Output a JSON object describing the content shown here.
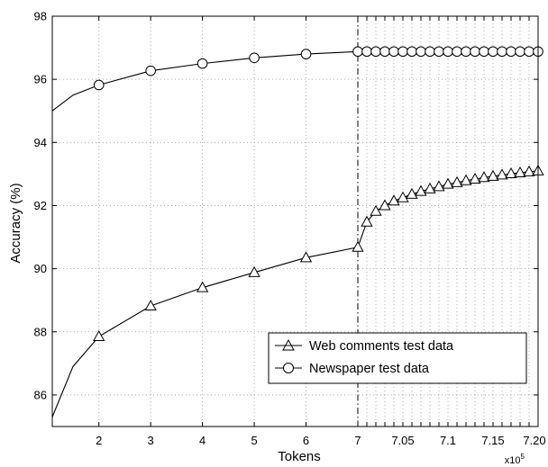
{
  "chart_data": {
    "type": "line",
    "title": "",
    "xlabel": "Tokens",
    "ylabel": "Accuracy (%)",
    "x_multiplier": "x10",
    "x_multiplier_exp": "5",
    "ylim": [
      85,
      98
    ],
    "yticks": [
      "86",
      "88",
      "90",
      "92",
      "94",
      "96",
      "98"
    ],
    "grid": "dotted",
    "legend_position": "bottom-right",
    "x_axis": {
      "scale": "piecewise-linear",
      "left_segment": {
        "range": [
          1.1,
          7
        ],
        "tick_labels": [
          "2",
          "3",
          "4",
          "5",
          "6",
          "7"
        ]
      },
      "right_segment": {
        "range": [
          7,
          7.2
        ],
        "tick_labels": [
          "7.05",
          "7.1",
          "7.15",
          "7.20"
        ]
      },
      "break_at": 7,
      "break_line": "dash-dot"
    },
    "series": [
      {
        "name": "Web comments test data",
        "marker": "triangle",
        "color": "#000000",
        "curve": [
          [
            1.1,
            85.3
          ],
          [
            1.5,
            86.9
          ]
        ],
        "points": [
          [
            2,
            87.85
          ],
          [
            3,
            88.82
          ],
          [
            4,
            89.4
          ],
          [
            5,
            89.88
          ],
          [
            6,
            90.35
          ],
          [
            7,
            90.68
          ],
          [
            7.01,
            91.48
          ],
          [
            7.02,
            91.82
          ],
          [
            7.03,
            92.0
          ],
          [
            7.04,
            92.15
          ],
          [
            7.05,
            92.25
          ],
          [
            7.06,
            92.36
          ],
          [
            7.07,
            92.45
          ],
          [
            7.08,
            92.53
          ],
          [
            7.09,
            92.6
          ],
          [
            7.1,
            92.68
          ],
          [
            7.11,
            92.73
          ],
          [
            7.12,
            92.79
          ],
          [
            7.13,
            92.84
          ],
          [
            7.14,
            92.89
          ],
          [
            7.15,
            92.93
          ],
          [
            7.16,
            92.97
          ],
          [
            7.17,
            93.01
          ],
          [
            7.18,
            93.04
          ],
          [
            7.19,
            93.07
          ],
          [
            7.2,
            93.1
          ]
        ]
      },
      {
        "name": "Newspaper test data",
        "marker": "circle",
        "color": "#000000",
        "curve": [
          [
            1.1,
            95.0
          ],
          [
            1.5,
            95.5
          ]
        ],
        "points": [
          [
            2,
            95.82
          ],
          [
            3,
            96.27
          ],
          [
            4,
            96.5
          ],
          [
            5,
            96.68
          ],
          [
            6,
            96.8
          ],
          [
            7,
            96.88
          ],
          [
            7.01,
            96.88
          ],
          [
            7.02,
            96.88
          ],
          [
            7.03,
            96.88
          ],
          [
            7.04,
            96.88
          ],
          [
            7.05,
            96.88
          ],
          [
            7.06,
            96.88
          ],
          [
            7.07,
            96.88
          ],
          [
            7.08,
            96.88
          ],
          [
            7.09,
            96.88
          ],
          [
            7.1,
            96.88
          ],
          [
            7.11,
            96.88
          ],
          [
            7.12,
            96.88
          ],
          [
            7.13,
            96.88
          ],
          [
            7.14,
            96.88
          ],
          [
            7.15,
            96.88
          ],
          [
            7.16,
            96.88
          ],
          [
            7.17,
            96.88
          ],
          [
            7.18,
            96.88
          ],
          [
            7.19,
            96.88
          ],
          [
            7.2,
            96.88
          ]
        ]
      }
    ]
  }
}
